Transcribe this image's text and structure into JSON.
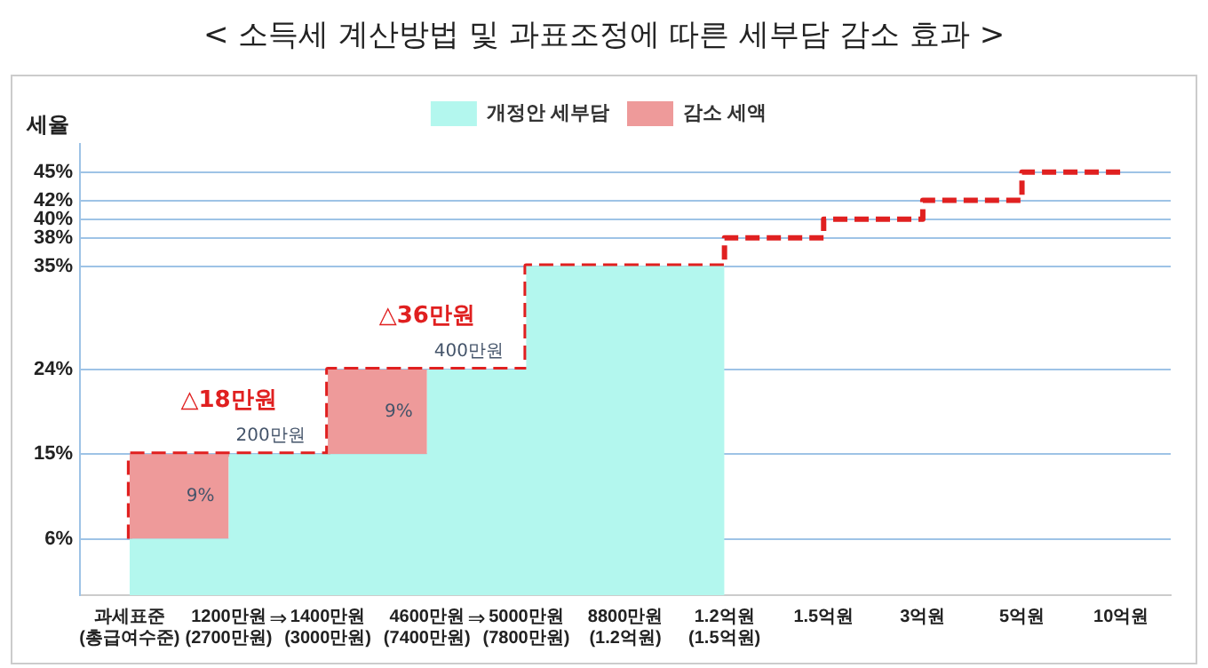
{
  "chart_data": {
    "type": "step",
    "title": "< 소득세 계산방법 및 과표조정에 따른 세부담 감소 효과 >",
    "ylabel": "세율",
    "categories": [
      "과세표준\n(총급여수준)",
      "1200만원\n(2700만원)",
      "1400만원\n(3000만원)",
      "4600만원\n(7400만원)",
      "5000만원\n(7800만원)",
      "8800만원\n(1.2억원)",
      "1.2억원\n(1.5억원)",
      "1.5억원",
      "3억원",
      "5억원",
      "10억원"
    ],
    "stacked": true,
    "series": [
      {
        "name": "개정안\n세부담",
        "type": "area",
        "color": "#b3f7ee",
        "values": [
          6,
          6,
          15,
          15,
          24,
          35,
          35,
          null,
          null,
          null,
          null
        ]
      },
      {
        "name": "감소\n세액",
        "type": "area",
        "color": "#ee9a9a",
        "values": [
          0,
          9,
          0,
          9,
          0,
          0,
          0,
          null,
          null,
          null,
          null
        ]
      },
      {
        "type": "step",
        "color": "#e02020",
        "line_style": "dashed",
        "values": [
          6,
          15,
          15,
          24,
          24,
          35,
          35,
          38,
          40,
          42,
          45
        ]
      }
    ],
    "ylim": [
      0,
      48
    ],
    "yticks": [
      {
        "value": 6,
        "label": "6%"
      },
      {
        "value": 15,
        "label": "15%"
      },
      {
        "value": 24,
        "label": "24%"
      },
      {
        "value": 35,
        "label": "35%"
      },
      {
        "value": 38,
        "label": "38%"
      },
      {
        "value": 40,
        "label": "40%"
      },
      {
        "value": 42,
        "label": "42%"
      },
      {
        "value": 45,
        "label": "45%"
      }
    ],
    "grid": "y",
    "legend": "top",
    "marker": "none",
    "annotations": [
      "△18만원",
      "200만원",
      "9%",
      "⇒",
      "△36만원",
      "400만원",
      "9%",
      "⇒"
    ]
  }
}
